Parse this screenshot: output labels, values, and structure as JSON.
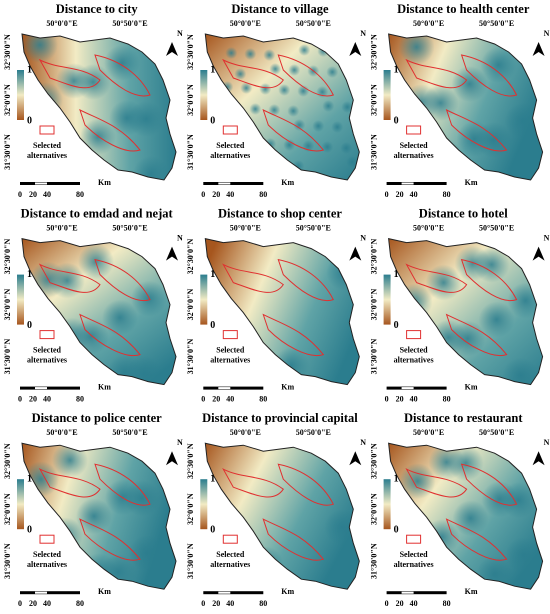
{
  "panels": [
    {
      "title": "Distance to city"
    },
    {
      "title": "Distance to village"
    },
    {
      "title": "Distance to health center"
    },
    {
      "title": "Distance to emdad and nejat"
    },
    {
      "title": "Distance to shop center"
    },
    {
      "title": "Distance to hotel"
    },
    {
      "title": "Distance to police center"
    },
    {
      "title": "Distance to provincial capital"
    },
    {
      "title": "Distance to restaurant"
    }
  ],
  "axes": {
    "lon": [
      "50°0'0\"E",
      "50°50'0\"E"
    ],
    "lat": [
      "32°30'0\"N",
      "32°0'0\"N",
      "31°30'0\"N"
    ]
  },
  "legend": {
    "high": "1",
    "low": "0",
    "selected": "Selected alternatives"
  },
  "scale": {
    "ticks": [
      "0",
      "20",
      "40",
      "80"
    ],
    "unit": "Km"
  },
  "north": "N"
}
